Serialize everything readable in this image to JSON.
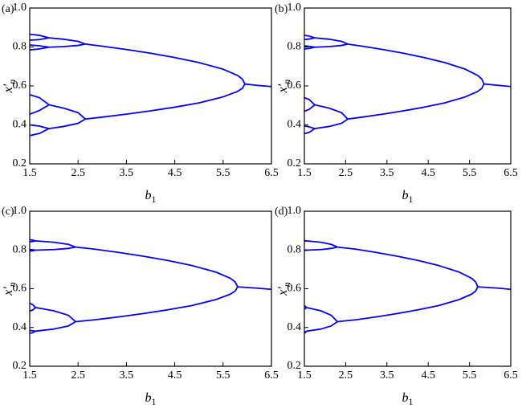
{
  "chart_data": [
    {
      "type": "line",
      "label": "(a)",
      "color": "#0000ff",
      "xlabel": {
        "symbol": "b",
        "subscript": "1"
      },
      "ylabel": {
        "symbol": "x′",
        "subscript": "n"
      },
      "xlim": [
        1.5,
        6.5
      ],
      "ylim": [
        0.2,
        1.0
      ],
      "xticks": [
        1.5,
        2.5,
        3.5,
        4.5,
        5.5,
        6.5
      ],
      "yticks": [
        0.2,
        0.4,
        0.6,
        0.8,
        {
          "value": 1,
          "label": "1.0"
        }
      ],
      "series": [
        {
          "x": [
            6.5,
            6.2,
            5.95
          ],
          "values": [
            0.597,
            0.603,
            0.61
          ]
        },
        {
          "x": [
            5.95,
            5.9,
            5.8,
            5.5,
            5.0,
            4.5,
            4.0,
            3.5,
            3.0,
            2.65
          ],
          "values": [
            0.61,
            0.635,
            0.654,
            0.686,
            0.72,
            0.746,
            0.768,
            0.787,
            0.804,
            0.815
          ]
        },
        {
          "x": [
            5.95,
            5.9,
            5.8,
            5.5,
            5.0,
            4.5,
            4.0,
            3.5,
            3.0,
            2.65
          ],
          "values": [
            0.61,
            0.588,
            0.572,
            0.544,
            0.513,
            0.491,
            0.472,
            0.455,
            0.44,
            0.43
          ]
        },
        {
          "x": [
            2.65,
            2.5,
            2.2,
            1.9
          ],
          "values": [
            0.815,
            0.829,
            0.84,
            0.847
          ]
        },
        {
          "x": [
            2.65,
            2.5,
            2.2,
            1.9
          ],
          "values": [
            0.815,
            0.808,
            0.802,
            0.799
          ]
        },
        {
          "x": [
            2.65,
            2.5,
            2.2,
            1.9
          ],
          "values": [
            0.43,
            0.463,
            0.486,
            0.503
          ]
        },
        {
          "x": [
            2.65,
            2.5,
            2.2,
            1.9
          ],
          "values": [
            0.43,
            0.408,
            0.392,
            0.381
          ]
        },
        {
          "x": [
            1.9,
            1.7,
            1.5
          ],
          "values": [
            0.847,
            0.86,
            0.865
          ]
        },
        {
          "x": [
            1.9,
            1.7,
            1.5
          ],
          "values": [
            0.847,
            0.838,
            0.835
          ]
        },
        {
          "x": [
            1.9,
            1.7,
            1.5
          ],
          "values": [
            0.799,
            0.806,
            0.81
          ]
        },
        {
          "x": [
            1.9,
            1.7,
            1.5
          ],
          "values": [
            0.799,
            0.79,
            0.785
          ]
        },
        {
          "x": [
            1.9,
            1.7,
            1.5
          ],
          "values": [
            0.503,
            0.54,
            0.555
          ]
        },
        {
          "x": [
            1.9,
            1.7,
            1.5
          ],
          "values": [
            0.503,
            0.474,
            0.455
          ]
        },
        {
          "x": [
            1.9,
            1.7,
            1.5
          ],
          "values": [
            0.381,
            0.394,
            0.4
          ]
        },
        {
          "x": [
            1.9,
            1.7,
            1.5
          ],
          "values": [
            0.381,
            0.356,
            0.345
          ]
        }
      ]
    },
    {
      "type": "line",
      "label": "(b)",
      "color": "#0000ff",
      "xlabel": {
        "symbol": "b",
        "subscript": "1"
      },
      "ylabel": {
        "symbol": "x′",
        "subscript": "n"
      },
      "xlim": [
        1.5,
        6.5
      ],
      "ylim": [
        0.2,
        1.0
      ],
      "xticks": [
        1.5,
        2.5,
        3.5,
        4.5,
        5.5,
        6.5
      ],
      "yticks": [
        0.2,
        0.4,
        0.6,
        0.8,
        {
          "value": 1,
          "label": "1.0"
        }
      ],
      "series": [
        {
          "x": [
            6.5,
            6.2,
            5.85
          ],
          "values": [
            0.597,
            0.603,
            0.61
          ]
        },
        {
          "x": [
            5.85,
            5.8,
            5.7,
            5.4,
            4.9,
            4.4,
            3.9,
            3.4,
            2.9,
            2.55
          ],
          "values": [
            0.61,
            0.635,
            0.654,
            0.686,
            0.72,
            0.746,
            0.768,
            0.787,
            0.804,
            0.815
          ]
        },
        {
          "x": [
            5.85,
            5.8,
            5.7,
            5.4,
            4.9,
            4.4,
            3.9,
            3.4,
            2.9,
            2.55
          ],
          "values": [
            0.61,
            0.588,
            0.572,
            0.544,
            0.513,
            0.491,
            0.472,
            0.455,
            0.44,
            0.43
          ]
        },
        {
          "x": [
            2.55,
            2.4,
            2.1,
            1.75
          ],
          "values": [
            0.815,
            0.829,
            0.84,
            0.847
          ]
        },
        {
          "x": [
            2.55,
            2.4,
            2.1,
            1.75
          ],
          "values": [
            0.815,
            0.808,
            0.802,
            0.799
          ]
        },
        {
          "x": [
            2.55,
            2.4,
            2.1,
            1.75
          ],
          "values": [
            0.43,
            0.463,
            0.486,
            0.503
          ]
        },
        {
          "x": [
            2.55,
            2.4,
            2.1,
            1.75
          ],
          "values": [
            0.43,
            0.408,
            0.392,
            0.381
          ]
        },
        {
          "x": [
            1.75,
            1.62,
            1.5
          ],
          "values": [
            0.847,
            0.856,
            0.86
          ]
        },
        {
          "x": [
            1.75,
            1.62,
            1.5
          ],
          "values": [
            0.847,
            0.841,
            0.838
          ]
        },
        {
          "x": [
            1.75,
            1.62,
            1.5
          ],
          "values": [
            0.799,
            0.803,
            0.806
          ]
        },
        {
          "x": [
            1.75,
            1.62,
            1.5
          ],
          "values": [
            0.799,
            0.793,
            0.79
          ]
        },
        {
          "x": [
            1.75,
            1.62,
            1.5
          ],
          "values": [
            0.503,
            0.53,
            0.54
          ]
        },
        {
          "x": [
            1.75,
            1.62,
            1.5
          ],
          "values": [
            0.503,
            0.48,
            0.47
          ]
        },
        {
          "x": [
            1.75,
            1.62,
            1.5
          ],
          "values": [
            0.381,
            0.39,
            0.395
          ]
        },
        {
          "x": [
            1.75,
            1.62,
            1.5
          ],
          "values": [
            0.381,
            0.362,
            0.355
          ]
        }
      ]
    },
    {
      "type": "line",
      "label": "(c)",
      "color": "#0000ff",
      "xlabel": {
        "symbol": "b",
        "subscript": "1"
      },
      "ylabel": {
        "symbol": "x′",
        "subscript": "n"
      },
      "xlim": [
        1.5,
        6.5
      ],
      "ylim": [
        0.2,
        1.0
      ],
      "xticks": [
        1.5,
        2.5,
        3.5,
        4.5,
        5.5,
        6.5
      ],
      "yticks": [
        0.2,
        0.4,
        0.6,
        0.8,
        {
          "value": 1,
          "label": "1.0"
        }
      ],
      "series": [
        {
          "x": [
            6.5,
            6.2,
            5.8
          ],
          "values": [
            0.597,
            0.603,
            0.61
          ]
        },
        {
          "x": [
            5.8,
            5.75,
            5.65,
            5.35,
            4.85,
            4.35,
            3.85,
            3.35,
            2.85,
            2.45
          ],
          "values": [
            0.61,
            0.635,
            0.654,
            0.686,
            0.72,
            0.746,
            0.768,
            0.787,
            0.804,
            0.815
          ]
        },
        {
          "x": [
            5.8,
            5.75,
            5.65,
            5.35,
            4.85,
            4.35,
            3.85,
            3.35,
            2.85,
            2.45
          ],
          "values": [
            0.61,
            0.588,
            0.572,
            0.544,
            0.513,
            0.491,
            0.472,
            0.455,
            0.44,
            0.43
          ]
        },
        {
          "x": [
            2.45,
            2.3,
            2.0,
            1.62
          ],
          "values": [
            0.815,
            0.829,
            0.84,
            0.847
          ]
        },
        {
          "x": [
            2.45,
            2.3,
            2.0,
            1.62
          ],
          "values": [
            0.815,
            0.808,
            0.802,
            0.799
          ]
        },
        {
          "x": [
            2.45,
            2.3,
            2.0,
            1.62
          ],
          "values": [
            0.43,
            0.463,
            0.486,
            0.503
          ]
        },
        {
          "x": [
            2.45,
            2.3,
            2.0,
            1.62
          ],
          "values": [
            0.43,
            0.408,
            0.392,
            0.381
          ]
        },
        {
          "x": [
            1.62,
            1.56,
            1.5
          ],
          "values": [
            0.847,
            0.851,
            0.853
          ]
        },
        {
          "x": [
            1.62,
            1.56,
            1.5
          ],
          "values": [
            0.847,
            0.844,
            0.842
          ]
        },
        {
          "x": [
            1.62,
            1.56,
            1.5
          ],
          "values": [
            0.799,
            0.801,
            0.802
          ]
        },
        {
          "x": [
            1.62,
            1.56,
            1.5
          ],
          "values": [
            0.799,
            0.796,
            0.795
          ]
        },
        {
          "x": [
            1.62,
            1.56,
            1.5
          ],
          "values": [
            0.503,
            0.518,
            0.525
          ]
        },
        {
          "x": [
            1.62,
            1.56,
            1.5
          ],
          "values": [
            0.503,
            0.49,
            0.485
          ]
        },
        {
          "x": [
            1.62,
            1.56,
            1.5
          ],
          "values": [
            0.381,
            0.383,
            0.385
          ]
        },
        {
          "x": [
            1.62,
            1.56,
            1.5
          ],
          "values": [
            0.381,
            0.373,
            0.37
          ]
        }
      ]
    },
    {
      "type": "line",
      "label": "(d)",
      "color": "#0000ff",
      "xlabel": {
        "symbol": "b",
        "subscript": "1"
      },
      "ylabel": {
        "symbol": "x′",
        "subscript": "n"
      },
      "xlim": [
        1.5,
        6.5
      ],
      "ylim": [
        0.2,
        1.0
      ],
      "xticks": [
        1.5,
        2.5,
        3.5,
        4.5,
        5.5,
        6.5
      ],
      "yticks": [
        0.2,
        0.4,
        0.6,
        0.8,
        {
          "value": 1,
          "label": "1.0"
        }
      ],
      "series": [
        {
          "x": [
            6.5,
            6.2,
            5.7
          ],
          "values": [
            0.597,
            0.603,
            0.61
          ]
        },
        {
          "x": [
            5.7,
            5.65,
            5.55,
            5.25,
            4.75,
            4.25,
            3.75,
            3.25,
            2.75,
            2.3
          ],
          "values": [
            0.61,
            0.635,
            0.654,
            0.686,
            0.72,
            0.746,
            0.768,
            0.787,
            0.804,
            0.815
          ]
        },
        {
          "x": [
            5.7,
            5.65,
            5.55,
            5.25,
            4.75,
            4.25,
            3.75,
            3.25,
            2.75,
            2.3
          ],
          "values": [
            0.61,
            0.588,
            0.572,
            0.544,
            0.513,
            0.491,
            0.472,
            0.455,
            0.44,
            0.43
          ]
        },
        {
          "x": [
            2.3,
            2.15,
            1.9,
            1.55
          ],
          "values": [
            0.815,
            0.829,
            0.84,
            0.847
          ]
        },
        {
          "x": [
            2.3,
            2.15,
            1.9,
            1.55
          ],
          "values": [
            0.815,
            0.808,
            0.802,
            0.799
          ]
        },
        {
          "x": [
            2.3,
            2.15,
            1.9,
            1.55
          ],
          "values": [
            0.43,
            0.463,
            0.486,
            0.503
          ]
        },
        {
          "x": [
            2.3,
            2.15,
            1.9,
            1.55
          ],
          "values": [
            0.43,
            0.408,
            0.392,
            0.381
          ]
        },
        {
          "x": [
            1.55,
            1.52,
            1.5
          ],
          "values": [
            0.847,
            0.848,
            0.849
          ]
        },
        {
          "x": [
            1.55,
            1.52,
            1.5
          ],
          "values": [
            0.847,
            0.846,
            0.845
          ]
        },
        {
          "x": [
            1.55,
            1.52,
            1.5
          ],
          "values": [
            0.799,
            0.8,
            0.8
          ]
        },
        {
          "x": [
            1.55,
            1.52,
            1.5
          ],
          "values": [
            0.799,
            0.798,
            0.798
          ]
        },
        {
          "x": [
            1.55,
            1.52,
            1.5
          ],
          "values": [
            0.503,
            0.51,
            0.512
          ]
        },
        {
          "x": [
            1.55,
            1.52,
            1.5
          ],
          "values": [
            0.503,
            0.497,
            0.495
          ]
        },
        {
          "x": [
            1.55,
            1.52,
            1.5
          ],
          "values": [
            0.381,
            0.377,
            0.378
          ]
        },
        {
          "x": [
            1.55,
            1.52,
            1.5
          ],
          "values": [
            0.381,
            0.373,
            0.372
          ]
        }
      ]
    }
  ]
}
